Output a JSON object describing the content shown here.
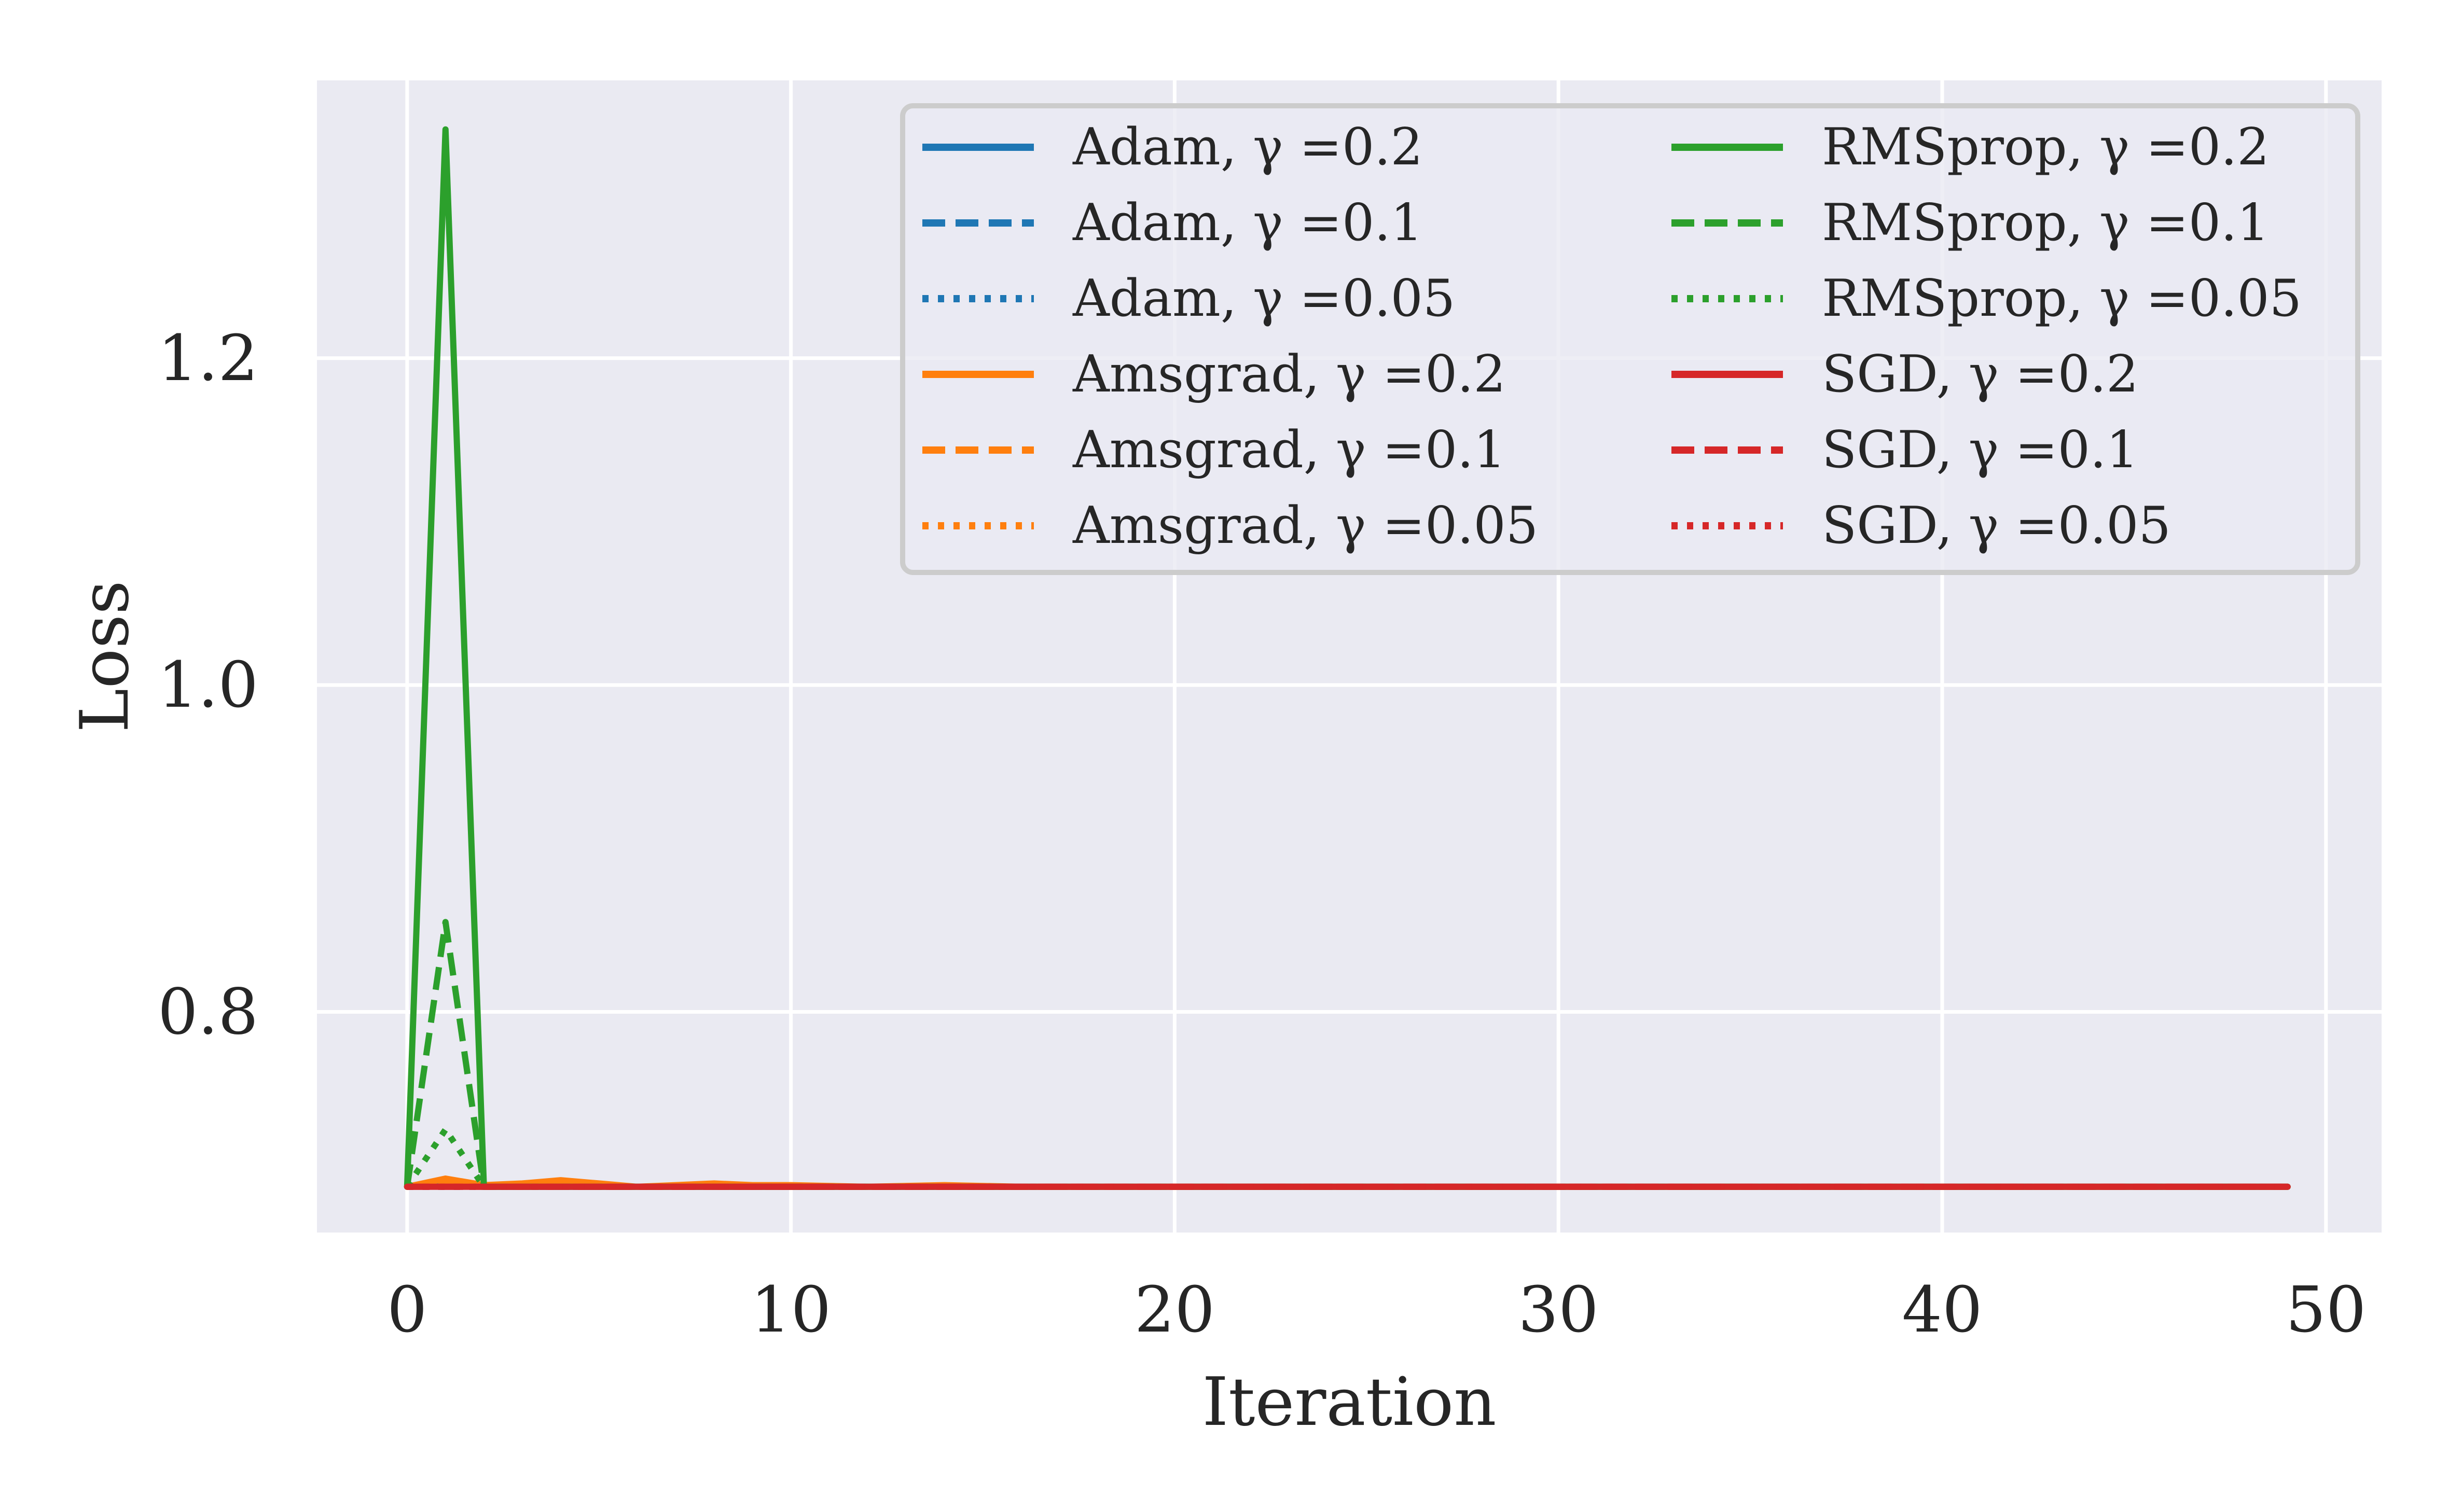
{
  "chart_data": {
    "type": "line",
    "title": "",
    "xlabel": "Iteration",
    "ylabel": "Loss",
    "xlim": [
      -2.35,
      51.45
    ],
    "ylim": [
      0.665,
      1.37
    ],
    "xticks": [
      0,
      10,
      20,
      30,
      40,
      50
    ],
    "xtick_labels": [
      "0",
      "10",
      "20",
      "30",
      "40",
      "50"
    ],
    "yticks": [
      0.8,
      1.0,
      1.2
    ],
    "ytick_labels": [
      "0.8",
      "1.0",
      "1.2"
    ],
    "grid": true,
    "legend_position": "top-right",
    "legend_columns": 2,
    "colors": {
      "Adam": "#1f77b4",
      "Amsgrad": "#ff7f0e",
      "RMSprop": "#2ca02c",
      "SGD": "#d62728",
      "plot_background": "#eaeaf2",
      "grid": "#ffffff"
    },
    "series": [
      {
        "name": "Adam, γ =0.2",
        "optimizer": "Adam",
        "style": "solid",
        "x": [
          0,
          1,
          2,
          3,
          49
        ],
        "y": [
          0.693,
          0.694,
          0.693,
          0.693,
          0.693
        ]
      },
      {
        "name": "Adam, γ =0.1",
        "optimizer": "Adam",
        "style": "dashed",
        "x": [
          0,
          1,
          2,
          49
        ],
        "y": [
          0.693,
          0.694,
          0.693,
          0.693
        ]
      },
      {
        "name": "Adam, γ =0.05",
        "optimizer": "Adam",
        "style": "dotted",
        "x": [
          0,
          1,
          2,
          49
        ],
        "y": [
          0.693,
          0.693,
          0.693,
          0.693
        ]
      },
      {
        "name": "Amsgrad, γ =0.2",
        "optimizer": "Amsgrad",
        "style": "solid",
        "x": [
          0,
          1,
          2,
          3,
          4,
          5,
          6,
          7,
          8,
          9,
          10,
          12,
          14,
          16,
          18,
          20,
          49
        ],
        "y": [
          0.693,
          0.698,
          0.694,
          0.695,
          0.697,
          0.695,
          0.693,
          0.694,
          0.695,
          0.694,
          0.694,
          0.693,
          0.694,
          0.693,
          0.693,
          0.693,
          0.693
        ]
      },
      {
        "name": "Amsgrad, γ =0.1",
        "optimizer": "Amsgrad",
        "style": "dashed",
        "x": [
          0,
          1,
          2,
          3,
          4,
          6,
          8,
          49
        ],
        "y": [
          0.693,
          0.695,
          0.694,
          0.693,
          0.694,
          0.693,
          0.693,
          0.693
        ]
      },
      {
        "name": "Amsgrad, γ =0.05",
        "optimizer": "Amsgrad",
        "style": "dotted",
        "x": [
          0,
          1,
          2,
          49
        ],
        "y": [
          0.693,
          0.694,
          0.693,
          0.693
        ]
      },
      {
        "name": "RMSprop, γ =0.2",
        "optimizer": "RMSprop",
        "style": "solid",
        "x": [
          0,
          1,
          2,
          49
        ],
        "y": [
          0.693,
          1.34,
          0.693,
          0.693
        ]
      },
      {
        "name": "RMSprop, γ =0.1",
        "optimizer": "RMSprop",
        "style": "dashed",
        "x": [
          0,
          1,
          2,
          49
        ],
        "y": [
          0.693,
          0.855,
          0.693,
          0.693
        ]
      },
      {
        "name": "RMSprop, γ =0.05",
        "optimizer": "RMSprop",
        "style": "dotted",
        "x": [
          0,
          1,
          2,
          49
        ],
        "y": [
          0.693,
          0.728,
          0.693,
          0.693
        ]
      },
      {
        "name": "SGD, γ =0.2",
        "optimizer": "SGD",
        "style": "solid",
        "x": [
          0,
          49
        ],
        "y": [
          0.693,
          0.693
        ]
      },
      {
        "name": "SGD, γ =0.1",
        "optimizer": "SGD",
        "style": "dashed",
        "x": [
          0,
          49
        ],
        "y": [
          0.693,
          0.693
        ]
      },
      {
        "name": "SGD, γ =0.05",
        "optimizer": "SGD",
        "style": "dotted",
        "x": [
          0,
          49
        ],
        "y": [
          0.693,
          0.693
        ]
      }
    ]
  }
}
